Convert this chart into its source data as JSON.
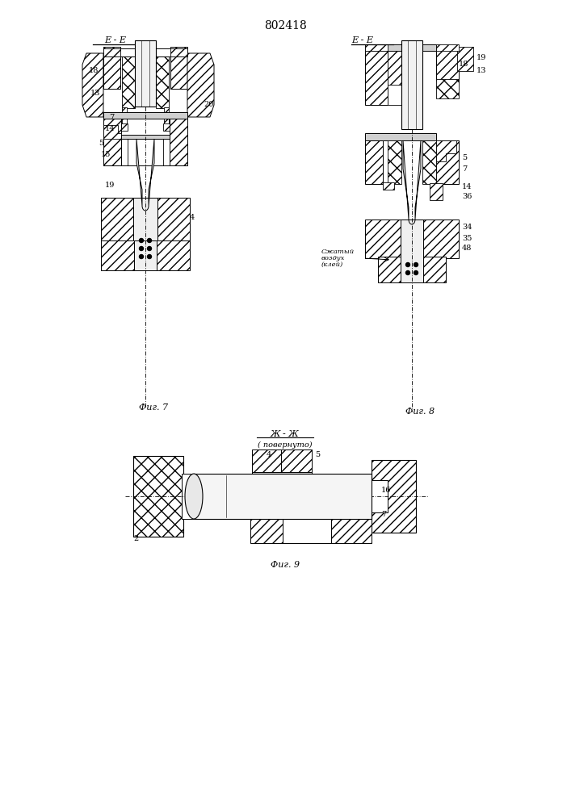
{
  "title": "802418",
  "fig7_label": "Фиг. 7",
  "fig8_label": "Фиг. 8",
  "fig9_label": "Фиг. 9",
  "bg_color": "#ffffff"
}
